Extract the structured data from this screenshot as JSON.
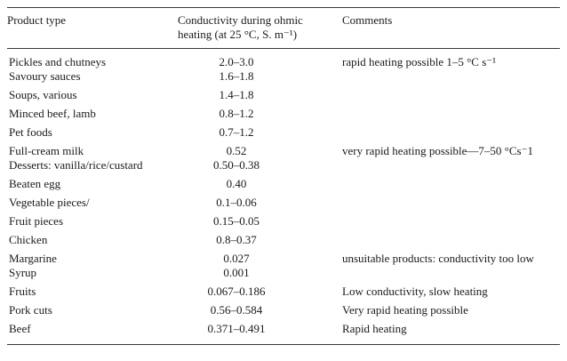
{
  "table": {
    "headers": {
      "product": "Product type",
      "conductivity_line1": "Conductivity during ohmic",
      "conductivity_line2": "heating (at 25 °C, S. m⁻¹)",
      "comments": "Comments"
    },
    "rows": [
      {
        "product": "Pickles and chutneys",
        "conductivity": "2.0–3.0",
        "comment": "rapid heating possible 1–5 °C s⁻¹",
        "tight": false
      },
      {
        "product": "Savoury sauces",
        "conductivity": "1.6–1.8",
        "comment": "",
        "tight": true
      },
      {
        "product": "Soups, various",
        "conductivity": "1.4–1.8",
        "comment": "",
        "tight": false
      },
      {
        "product": "Minced beef, lamb",
        "conductivity": "0.8–1.2",
        "comment": "",
        "tight": false
      },
      {
        "product": "Pet foods",
        "conductivity": "0.7–1.2",
        "comment": "",
        "tight": false
      },
      {
        "product": "Full-cream milk",
        "conductivity": "0.52",
        "comment": "very rapid heating possible—7–50 °Cs⁻1",
        "tight": false
      },
      {
        "product": "Desserts: vanilla/rice/custard",
        "conductivity": "0.50–0.38",
        "comment": "",
        "tight": true
      },
      {
        "product": "Beaten egg",
        "conductivity": "0.40",
        "comment": "",
        "tight": false
      },
      {
        "product": "Vegetable pieces/",
        "conductivity": "0.1–0.06",
        "comment": "",
        "tight": false
      },
      {
        "product": "Fruit pieces",
        "conductivity": "0.15–0.05",
        "comment": "",
        "tight": false
      },
      {
        "product": "Chicken",
        "conductivity": "0.8–0.37",
        "comment": "",
        "tight": false
      },
      {
        "product": "Margarine",
        "conductivity": "0.027",
        "comment": "unsuitable products: conductivity too low",
        "tight": false
      },
      {
        "product": "Syrup",
        "conductivity": "0.001",
        "comment": "",
        "tight": true
      },
      {
        "product": "Fruits",
        "conductivity": "0.067–0.186",
        "comment": "Low conductivity, slow heating",
        "tight": false
      },
      {
        "product": "Pork cuts",
        "conductivity": "0.56–0.584",
        "comment": "Very rapid heating possible",
        "tight": false
      },
      {
        "product": "Beef",
        "conductivity": "0.371–0.491",
        "comment": "Rapid heating",
        "tight": false
      }
    ]
  }
}
